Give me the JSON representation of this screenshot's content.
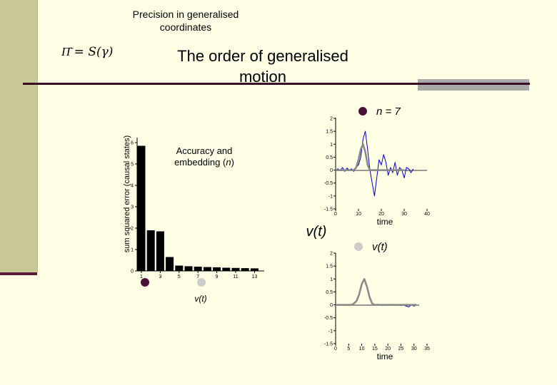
{
  "header": {
    "subtitle_line1": "Precision in generalised",
    "subtitle_line2": "coordinates",
    "formula": "Π͂ = S(γ)",
    "title_line1": "The order of generalised",
    "title_line2": "motion"
  },
  "colors": {
    "sidebar": "#c8c896",
    "rule": "#3a0d26",
    "bar": "#000000",
    "signal_estimate": "#0000cc",
    "signal_true": "#888888",
    "dot_dark": "#4a1238",
    "dot_light": "#cccccc"
  },
  "chart_data": [
    {
      "type": "bar",
      "title": "Accuracy and embedding (n)",
      "ylabel": "sum squared error (causal states)",
      "xlabel": "",
      "categories": [
        1,
        2,
        3,
        4,
        5,
        6,
        7,
        8,
        9,
        10,
        11,
        12,
        13
      ],
      "values": [
        5.85,
        1.9,
        1.85,
        0.65,
        0.25,
        0.22,
        0.2,
        0.18,
        0.17,
        0.15,
        0.14,
        0.13,
        0.12
      ],
      "xticks": [
        "1",
        "3",
        "5",
        "7",
        "9",
        "11",
        "13"
      ],
      "yticks": [
        "0",
        "1",
        "2",
        "3",
        "4",
        "5",
        "6"
      ],
      "ylim": [
        0,
        6
      ],
      "legend_label": "v(t)",
      "grid": false
    },
    {
      "type": "line",
      "annotation": "n = 7",
      "xlabel": "time",
      "ylabel": "v(t)",
      "xlim": [
        0,
        40
      ],
      "ylim": [
        -1.5,
        2
      ],
      "xticks": [
        "0",
        "10",
        "20",
        "30",
        "40"
      ],
      "yticks": [
        "-1.5",
        "-1",
        "-0.5",
        "0",
        "0.5",
        "1",
        "1.5",
        "2"
      ],
      "series": [
        {
          "x": [
            0,
            1,
            2,
            3,
            4,
            5,
            6,
            7,
            8,
            9,
            10,
            11,
            12,
            13,
            14,
            15,
            16,
            17,
            18,
            19,
            20,
            21,
            22,
            23,
            24,
            25,
            26,
            27,
            28,
            29,
            30,
            31,
            32,
            33,
            34
          ],
          "values": [
            0,
            0.05,
            -0.02,
            0.1,
            -0.05,
            0.08,
            0,
            0.05,
            -0.05,
            0.1,
            0.2,
            0.5,
            1.2,
            1.5,
            0.8,
            0,
            -0.5,
            -1.0,
            -0.3,
            0.4,
            0.2,
            0.6,
            0.3,
            -0.2,
            0.1,
            -0.1,
            0.3,
            -0.2,
            0.1,
            0.0,
            -0.3,
            0.1,
            0.05,
            -0.1,
            0.05
          ]
        },
        {
          "x": [
            0,
            4,
            6,
            8,
            9,
            10,
            11,
            12,
            13,
            14,
            15,
            16,
            20,
            25,
            30
          ],
          "values": [
            0,
            0,
            0,
            0,
            0.1,
            0.4,
            0.8,
            1.0,
            0.7,
            0.2,
            0,
            0,
            0,
            0,
            0
          ]
        }
      ]
    },
    {
      "type": "line",
      "annotation": "v(t)",
      "xlabel": "time",
      "xlim": [
        0,
        35
      ],
      "ylim": [
        -1.5,
        2
      ],
      "xticks": [
        "0",
        "5",
        "10",
        "15",
        "20",
        "25",
        "30",
        "35"
      ],
      "yticks": [
        "-1.5",
        "-1",
        "-0.5",
        "0",
        "0.5",
        "1",
        "1.5",
        "2"
      ],
      "series": [
        {
          "x": [
            0,
            2,
            4,
            5,
            6,
            7,
            8,
            9,
            10,
            11,
            12,
            13,
            14,
            15,
            16,
            17,
            18,
            19,
            20,
            21,
            22,
            23,
            24,
            25,
            26,
            27,
            28,
            29,
            30,
            31
          ],
          "values": [
            0,
            0,
            0,
            0,
            0.02,
            0.05,
            0.15,
            0.4,
            0.8,
            1.0,
            0.7,
            0.25,
            0.05,
            0,
            0.02,
            0,
            -0.02,
            0,
            0,
            0.02,
            0,
            0,
            0,
            -0.03,
            0,
            -0.05,
            -0.08,
            0,
            -0.05,
            0
          ]
        },
        {
          "x": [
            0,
            5,
            6,
            7,
            8,
            9,
            10,
            11,
            12,
            13,
            14,
            15,
            20,
            25,
            30,
            31
          ],
          "values": [
            0,
            0,
            0,
            0.05,
            0.15,
            0.4,
            0.8,
            1.0,
            0.7,
            0.3,
            0.05,
            0,
            0,
            0,
            0,
            0
          ]
        }
      ]
    }
  ]
}
